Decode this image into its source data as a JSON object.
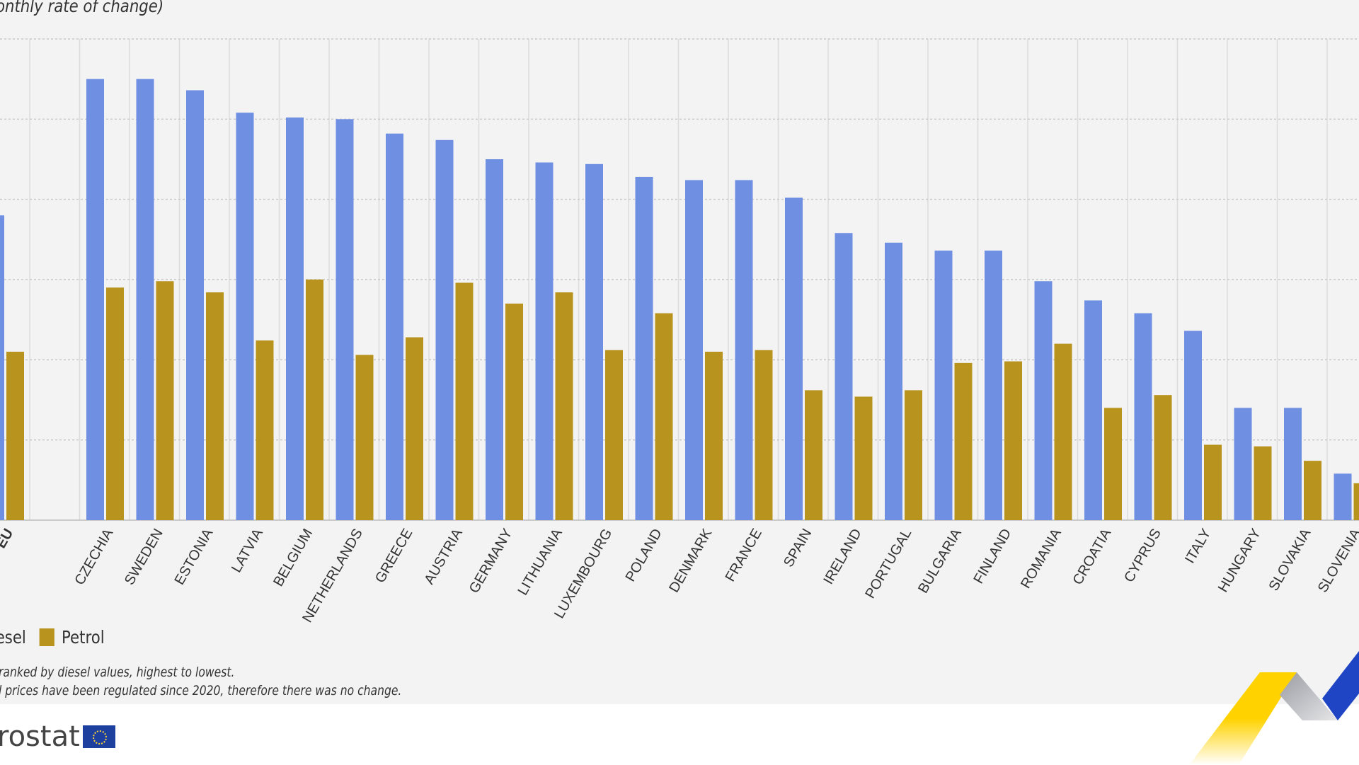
{
  "subtitle": "onthly rate of change)",
  "chart_data": {
    "type": "bar",
    "subtitle": "onthly rate of change)",
    "categories": [
      "EU",
      "CZECHIA",
      "SWEDEN",
      "ESTONIA",
      "LATVIA",
      "BELGIUM",
      "NETHERLANDS",
      "GREECE",
      "AUSTRIA",
      "GERMANY",
      "LITHUANIA",
      "LUXEMBOURG",
      "POLAND",
      "DENMARK",
      "FRANCE",
      "SPAIN",
      "IRELAND",
      "PORTUGAL",
      "BULGARIA",
      "FINLAND",
      "ROMANIA",
      "CROATIA",
      "CYPRUS",
      "ITALY",
      "HUNGARY",
      "SLOVAKIA",
      "SLOVENIA"
    ],
    "series": [
      {
        "name": "Diesel",
        "color": "#6f8fe3",
        "values": [
          19.0,
          27.5,
          27.5,
          26.8,
          25.4,
          25.1,
          25.0,
          24.1,
          23.7,
          22.5,
          22.3,
          22.2,
          21.4,
          21.2,
          21.2,
          20.1,
          17.9,
          17.3,
          16.8,
          16.8,
          14.9,
          13.7,
          12.9,
          11.8,
          7.0,
          7.0,
          2.9
        ]
      },
      {
        "name": "Petrol",
        "color": "#b8941f",
        "values": [
          10.5,
          14.5,
          14.9,
          14.2,
          11.2,
          15.0,
          10.3,
          11.4,
          14.8,
          13.5,
          14.2,
          10.6,
          12.9,
          10.5,
          10.6,
          8.1,
          7.7,
          8.1,
          9.8,
          9.9,
          11.0,
          7.0,
          7.8,
          4.7,
          4.6,
          3.7,
          2.3
        ]
      }
    ],
    "ylim": [
      0,
      30
    ],
    "grid": true,
    "legend_placement": "bottom-left"
  },
  "legend": {
    "diesel": "Diesel",
    "petrol": "Petrol"
  },
  "notes": {
    "line1": "ranked by diesel values, highest to lowest.",
    "line2": "l prices have been regulated since 2020, therefore there was no change."
  },
  "logo": "rostat"
}
